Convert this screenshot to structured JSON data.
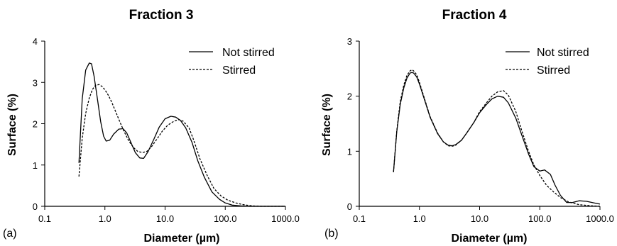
{
  "chart_data": [
    {
      "panel_tag": "(a)",
      "type": "line",
      "title": "Fraction 3",
      "xlabel": "Diameter (µm)",
      "ylabel": "Surface (%)",
      "xscale": "log",
      "xlim": [
        0.1,
        1000
      ],
      "ylim": [
        0,
        4
      ],
      "x_ticks": [
        0.1,
        1,
        10,
        100,
        1000
      ],
      "x_tick_labels": [
        "0.1",
        "1.0",
        "10.0",
        "100.0",
        "1000.0"
      ],
      "y_ticks": [
        0,
        1,
        2,
        3,
        4
      ],
      "y_tick_labels": [
        "0",
        "1",
        "2",
        "3",
        "4"
      ],
      "grid": false,
      "legend_position": "top-right",
      "series": [
        {
          "name": "Not stirred",
          "style": "solid",
          "color": "#000000",
          "x": [
            0.37,
            0.42,
            0.48,
            0.55,
            0.6,
            0.66,
            0.75,
            0.85,
            0.95,
            1.05,
            1.2,
            1.4,
            1.7,
            2.0,
            2.3,
            2.7,
            3.2,
            3.8,
            4.4,
            5.2,
            6.5,
            8.0,
            10.0,
            12.5,
            15.0,
            18.0,
            22.0,
            28.0,
            35.0,
            45.0,
            60.0,
            80.0,
            100.0,
            130.0,
            180.0,
            250.0,
            400.0,
            700.0,
            1000.0
          ],
          "y": [
            1.05,
            2.6,
            3.3,
            3.47,
            3.45,
            3.15,
            2.6,
            2.05,
            1.7,
            1.58,
            1.6,
            1.75,
            1.87,
            1.88,
            1.78,
            1.55,
            1.3,
            1.17,
            1.16,
            1.32,
            1.62,
            1.92,
            2.12,
            2.18,
            2.16,
            2.08,
            1.9,
            1.55,
            1.1,
            0.7,
            0.35,
            0.17,
            0.08,
            0.03,
            0.01,
            0.0,
            0.0,
            0.0,
            0.0
          ]
        },
        {
          "name": "Stirred",
          "style": "dashed",
          "color": "#000000",
          "x": [
            0.37,
            0.42,
            0.48,
            0.55,
            0.62,
            0.7,
            0.8,
            0.9,
            1.0,
            1.15,
            1.3,
            1.5,
            1.8,
            2.1,
            2.5,
            3.0,
            3.5,
            4.2,
            5.0,
            6.0,
            7.5,
            9.0,
            11.0,
            14.0,
            17.0,
            20.0,
            25.0,
            30.0,
            38.0,
            50.0,
            65.0,
            85.0,
            110.0,
            150.0,
            200.0,
            280.0,
            400.0,
            700.0,
            1000.0
          ],
          "y": [
            0.72,
            1.65,
            2.25,
            2.62,
            2.83,
            2.93,
            2.95,
            2.9,
            2.82,
            2.68,
            2.52,
            2.3,
            2.02,
            1.8,
            1.58,
            1.42,
            1.33,
            1.3,
            1.33,
            1.45,
            1.65,
            1.82,
            1.96,
            2.06,
            2.1,
            2.06,
            1.9,
            1.6,
            1.15,
            0.75,
            0.43,
            0.25,
            0.15,
            0.08,
            0.04,
            0.01,
            0.0,
            0.0,
            0.0
          ]
        }
      ]
    },
    {
      "panel_tag": "(b)",
      "type": "line",
      "title": "Fraction 4",
      "xlabel": "Diameter (µm)",
      "ylabel": "Surface (%)",
      "xscale": "log",
      "xlim": [
        0.1,
        1000
      ],
      "ylim": [
        0,
        3
      ],
      "x_ticks": [
        0.1,
        1,
        10,
        100,
        1000
      ],
      "x_tick_labels": [
        "0.1",
        "1.0",
        "10.0",
        "100.0",
        "1000.0"
      ],
      "y_ticks": [
        0,
        1,
        2,
        3
      ],
      "y_tick_labels": [
        "0",
        "1",
        "2",
        "3"
      ],
      "grid": false,
      "legend_position": "top-right",
      "series": [
        {
          "name": "Not stirred",
          "style": "solid",
          "color": "#000000",
          "x": [
            0.37,
            0.42,
            0.48,
            0.55,
            0.62,
            0.7,
            0.75,
            0.8,
            0.9,
            1.0,
            1.2,
            1.5,
            2.0,
            2.5,
            3.0,
            3.5,
            4.0,
            5.0,
            6.0,
            8.0,
            10.0,
            13.0,
            16.0,
            20.0,
            25.0,
            30.0,
            40.0,
            50.0,
            65.0,
            80.0,
            100.0,
            120.0,
            150.0,
            180.0,
            220.0,
            280.0,
            350.0,
            450.0,
            600.0,
            800.0,
            1000.0
          ],
          "y": [
            0.62,
            1.35,
            1.85,
            2.15,
            2.33,
            2.42,
            2.43,
            2.42,
            2.35,
            2.22,
            1.95,
            1.62,
            1.32,
            1.17,
            1.11,
            1.1,
            1.12,
            1.2,
            1.32,
            1.52,
            1.7,
            1.85,
            1.95,
            2.0,
            1.98,
            1.88,
            1.6,
            1.3,
            0.95,
            0.72,
            0.64,
            0.66,
            0.58,
            0.38,
            0.2,
            0.07,
            0.07,
            0.1,
            0.09,
            0.06,
            0.04
          ]
        },
        {
          "name": "Stirred",
          "style": "dashed",
          "color": "#000000",
          "x": [
            0.37,
            0.42,
            0.48,
            0.55,
            0.62,
            0.7,
            0.75,
            0.8,
            0.9,
            1.0,
            1.2,
            1.5,
            2.0,
            2.5,
            3.0,
            3.5,
            4.0,
            5.0,
            6.0,
            8.0,
            10.0,
            13.0,
            16.0,
            20.0,
            25.0,
            30.0,
            40.0,
            50.0,
            65.0,
            80.0,
            100.0,
            130.0,
            170.0,
            220.0,
            300.0,
            450.0,
            700.0,
            1000.0
          ],
          "y": [
            0.62,
            1.37,
            1.9,
            2.2,
            2.38,
            2.46,
            2.48,
            2.46,
            2.39,
            2.25,
            1.97,
            1.63,
            1.33,
            1.17,
            1.1,
            1.09,
            1.11,
            1.2,
            1.32,
            1.52,
            1.72,
            1.88,
            2.0,
            2.08,
            2.1,
            2.02,
            1.72,
            1.38,
            1.0,
            0.75,
            0.56,
            0.38,
            0.26,
            0.16,
            0.08,
            0.03,
            0.01,
            0.0
          ]
        }
      ]
    }
  ]
}
